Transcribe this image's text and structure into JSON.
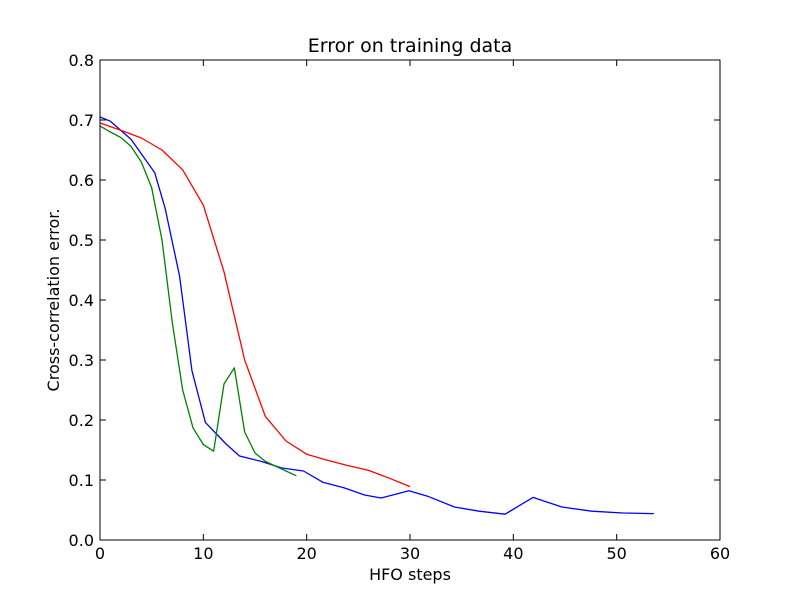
{
  "chart_data": {
    "type": "line",
    "title": "Error on training data",
    "xlabel": "HFO steps",
    "ylabel": "Cross-correlation error.",
    "xlim": [
      0,
      60
    ],
    "ylim": [
      0.0,
      0.8
    ],
    "x_ticks": [
      "0",
      "10",
      "20",
      "30",
      "40",
      "50",
      "60"
    ],
    "y_ticks": [
      "0.0",
      "0.1",
      "0.2",
      "0.3",
      "0.4",
      "0.5",
      "0.6",
      "0.7",
      "0.8"
    ],
    "grid": false,
    "legend": "none",
    "series": [
      {
        "color": "#0000ff",
        "x": [
          0,
          1,
          3,
          5.3,
          6.3,
          7.7,
          8.9,
          10.2,
          12.2,
          13.5,
          15.6,
          17.6,
          19.7,
          21.6,
          23.6,
          25.6,
          27.2,
          29.9,
          31.7,
          34.3,
          36.7,
          39.2,
          41.9,
          44.7,
          47.6,
          50.6,
          53.6
        ],
        "y": [
          0.705,
          0.698,
          0.668,
          0.612,
          0.553,
          0.44,
          0.282,
          0.196,
          0.16,
          0.14,
          0.131,
          0.12,
          0.115,
          0.096,
          0.087,
          0.075,
          0.07,
          0.082,
          0.073,
          0.055,
          0.048,
          0.043,
          0.071,
          0.055,
          0.048,
          0.045,
          0.044
        ]
      },
      {
        "color": "#ff0000",
        "x": [
          0,
          2,
          4,
          6,
          8,
          10,
          12,
          14,
          16,
          18,
          20,
          22,
          24,
          26,
          28,
          30
        ],
        "y": [
          0.695,
          0.683,
          0.67,
          0.65,
          0.617,
          0.558,
          0.447,
          0.3,
          0.206,
          0.165,
          0.143,
          0.133,
          0.124,
          0.116,
          0.103,
          0.089
        ]
      },
      {
        "color": "#008000",
        "x": [
          0,
          1,
          2,
          3,
          4,
          5,
          6,
          7,
          8,
          9,
          10,
          11,
          12,
          13,
          14,
          15,
          16,
          17,
          18,
          19
        ],
        "y": [
          0.69,
          0.68,
          0.671,
          0.656,
          0.63,
          0.587,
          0.5,
          0.362,
          0.25,
          0.187,
          0.159,
          0.148,
          0.26,
          0.287,
          0.18,
          0.145,
          0.131,
          0.123,
          0.115,
          0.107
        ]
      }
    ]
  }
}
